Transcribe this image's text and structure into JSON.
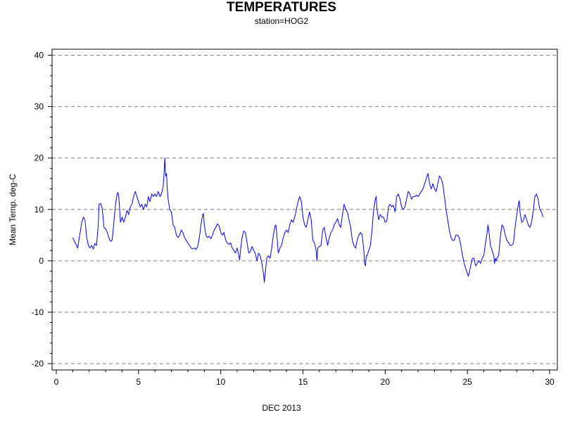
{
  "chart_data": {
    "type": "line",
    "title": "TEMPERATURES",
    "subtitle": "station=HOG2",
    "xlabel": "DEC 2013",
    "ylabel": "Mean Temp. deg-C",
    "xlim": [
      0,
      30
    ],
    "ylim": [
      -20,
      40
    ],
    "x_ticks": [
      0,
      5,
      10,
      15,
      20,
      25,
      30
    ],
    "y_ticks": [
      -20,
      -10,
      0,
      10,
      20,
      30,
      40
    ],
    "grid": "horizontal dashed",
    "line_color": "#0000ff",
    "series": [
      {
        "points": [
          [
            1.0,
            4.5
          ],
          [
            1.1,
            3.8
          ],
          [
            1.2,
            3.2
          ],
          [
            1.3,
            2.5
          ],
          [
            1.35,
            3.5
          ],
          [
            1.45,
            5.5
          ],
          [
            1.55,
            7.5
          ],
          [
            1.65,
            8.5
          ],
          [
            1.75,
            7.8
          ],
          [
            1.85,
            4.5
          ],
          [
            1.95,
            3.0
          ],
          [
            2.05,
            2.5
          ],
          [
            2.15,
            3.0
          ],
          [
            2.25,
            2.3
          ],
          [
            2.35,
            3.4
          ],
          [
            2.45,
            3.0
          ],
          [
            2.55,
            7.0
          ],
          [
            2.6,
            11.0
          ],
          [
            2.7,
            11.2
          ],
          [
            2.8,
            10.0
          ],
          [
            2.9,
            6.5
          ],
          [
            3.0,
            6.2
          ],
          [
            3.1,
            5.5
          ],
          [
            3.2,
            4.5
          ],
          [
            3.3,
            3.8
          ],
          [
            3.4,
            4.0
          ],
          [
            3.5,
            7.5
          ],
          [
            3.6,
            11.0
          ],
          [
            3.7,
            13.0
          ],
          [
            3.75,
            13.3
          ],
          [
            3.8,
            12.5
          ],
          [
            3.85,
            10.0
          ],
          [
            3.9,
            7.5
          ],
          [
            4.0,
            8.5
          ],
          [
            4.1,
            7.5
          ],
          [
            4.2,
            8.5
          ],
          [
            4.3,
            9.8
          ],
          [
            4.4,
            9.0
          ],
          [
            4.5,
            10.5
          ],
          [
            4.6,
            11.0
          ],
          [
            4.7,
            12.5
          ],
          [
            4.8,
            13.5
          ],
          [
            4.9,
            12.5
          ],
          [
            5.0,
            11.5
          ],
          [
            5.1,
            10.5
          ],
          [
            5.2,
            11.0
          ],
          [
            5.3,
            10.0
          ],
          [
            5.4,
            11.0
          ],
          [
            5.5,
            10.5
          ],
          [
            5.6,
            12.5
          ],
          [
            5.7,
            11.5
          ],
          [
            5.8,
            13.0
          ],
          [
            5.9,
            12.5
          ],
          [
            6.0,
            13.0
          ],
          [
            6.1,
            12.5
          ],
          [
            6.2,
            13.5
          ],
          [
            6.3,
            12.5
          ],
          [
            6.4,
            13.0
          ],
          [
            6.5,
            14.5
          ],
          [
            6.55,
            17.0
          ],
          [
            6.6,
            20.0
          ],
          [
            6.65,
            16.5
          ],
          [
            6.7,
            17.0
          ],
          [
            6.75,
            14.0
          ],
          [
            6.8,
            12.0
          ],
          [
            6.9,
            10.0
          ],
          [
            7.0,
            9.5
          ],
          [
            7.1,
            7.0
          ],
          [
            7.2,
            6.5
          ],
          [
            7.3,
            5.0
          ],
          [
            7.4,
            4.5
          ],
          [
            7.5,
            5.0
          ],
          [
            7.6,
            6.0
          ],
          [
            7.7,
            5.5
          ],
          [
            7.8,
            4.5
          ],
          [
            7.9,
            4.0
          ],
          [
            8.0,
            3.5
          ],
          [
            8.1,
            3.0
          ],
          [
            8.2,
            2.5
          ],
          [
            8.3,
            2.3
          ],
          [
            8.4,
            2.5
          ],
          [
            8.5,
            2.2
          ],
          [
            8.6,
            2.8
          ],
          [
            8.7,
            4.5
          ],
          [
            8.8,
            7.0
          ],
          [
            8.9,
            9.0
          ],
          [
            8.95,
            9.2
          ],
          [
            9.0,
            7.0
          ],
          [
            9.1,
            5.0
          ],
          [
            9.2,
            4.5
          ],
          [
            9.3,
            4.8
          ],
          [
            9.4,
            4.3
          ],
          [
            9.5,
            5.0
          ],
          [
            9.6,
            6.0
          ],
          [
            9.7,
            6.5
          ],
          [
            9.8,
            7.2
          ],
          [
            9.9,
            6.8
          ],
          [
            10.0,
            5.5
          ],
          [
            10.1,
            5.0
          ],
          [
            10.2,
            5.5
          ],
          [
            10.3,
            4.0
          ],
          [
            10.4,
            3.5
          ],
          [
            10.5,
            3.2
          ],
          [
            10.6,
            3.5
          ],
          [
            10.7,
            2.5
          ],
          [
            10.8,
            2.0
          ],
          [
            10.9,
            1.5
          ],
          [
            11.0,
            2.5
          ],
          [
            11.1,
            1.0
          ],
          [
            11.15,
            0.2
          ],
          [
            11.2,
            2.0
          ],
          [
            11.3,
            4.5
          ],
          [
            11.4,
            5.8
          ],
          [
            11.5,
            5.5
          ],
          [
            11.6,
            3.5
          ],
          [
            11.7,
            1.5
          ],
          [
            11.8,
            1.8
          ],
          [
            11.9,
            2.8
          ],
          [
            12.0,
            2.0
          ],
          [
            12.1,
            1.5
          ],
          [
            12.2,
            0.0
          ],
          [
            12.3,
            1.5
          ],
          [
            12.4,
            1.0
          ],
          [
            12.5,
            -0.5
          ],
          [
            12.6,
            -2.5
          ],
          [
            12.65,
            -4.2
          ],
          [
            12.7,
            -2.5
          ],
          [
            12.8,
            0.5
          ],
          [
            12.9,
            1.0
          ],
          [
            13.0,
            0.5
          ],
          [
            13.1,
            2.5
          ],
          [
            13.2,
            5.0
          ],
          [
            13.3,
            6.8
          ],
          [
            13.35,
            7.0
          ],
          [
            13.4,
            5.5
          ],
          [
            13.5,
            1.5
          ],
          [
            13.6,
            2.5
          ],
          [
            13.7,
            3.0
          ],
          [
            13.8,
            4.5
          ],
          [
            13.9,
            5.5
          ],
          [
            14.0,
            6.0
          ],
          [
            14.1,
            5.5
          ],
          [
            14.2,
            7.0
          ],
          [
            14.3,
            8.0
          ],
          [
            14.4,
            7.5
          ],
          [
            14.5,
            8.5
          ],
          [
            14.6,
            10.0
          ],
          [
            14.7,
            11.5
          ],
          [
            14.8,
            12.5
          ],
          [
            14.9,
            11.5
          ],
          [
            15.0,
            8.5
          ],
          [
            15.1,
            7.0
          ],
          [
            15.2,
            6.5
          ],
          [
            15.3,
            8.0
          ],
          [
            15.4,
            9.5
          ],
          [
            15.5,
            8.0
          ],
          [
            15.6,
            4.0
          ],
          [
            15.7,
            3.5
          ],
          [
            15.8,
            2.0
          ],
          [
            15.85,
            0.0
          ],
          [
            15.9,
            2.5
          ],
          [
            16.0,
            2.8
          ],
          [
            16.1,
            3.0
          ],
          [
            16.2,
            6.0
          ],
          [
            16.3,
            6.5
          ],
          [
            16.4,
            4.5
          ],
          [
            16.5,
            3.0
          ],
          [
            16.6,
            4.5
          ],
          [
            16.7,
            5.5
          ],
          [
            16.8,
            6.0
          ],
          [
            16.9,
            7.0
          ],
          [
            17.0,
            7.5
          ],
          [
            17.1,
            8.2
          ],
          [
            17.2,
            7.0
          ],
          [
            17.3,
            6.5
          ],
          [
            17.4,
            9.0
          ],
          [
            17.5,
            11.0
          ],
          [
            17.6,
            10.0
          ],
          [
            17.7,
            9.5
          ],
          [
            17.8,
            8.0
          ],
          [
            17.9,
            6.5
          ],
          [
            18.0,
            4.0
          ],
          [
            18.1,
            3.0
          ],
          [
            18.2,
            2.5
          ],
          [
            18.3,
            4.0
          ],
          [
            18.4,
            5.0
          ],
          [
            18.5,
            5.5
          ],
          [
            18.6,
            5.0
          ],
          [
            18.7,
            2.0
          ],
          [
            18.75,
            -0.5
          ],
          [
            18.8,
            -1.0
          ],
          [
            18.85,
            1.0
          ],
          [
            18.9,
            1.0
          ],
          [
            19.0,
            2.0
          ],
          [
            19.1,
            3.0
          ],
          [
            19.2,
            6.0
          ],
          [
            19.3,
            10.0
          ],
          [
            19.4,
            12.0
          ],
          [
            19.45,
            12.5
          ],
          [
            19.5,
            10.0
          ],
          [
            19.6,
            8.0
          ],
          [
            19.7,
            9.0
          ],
          [
            19.8,
            8.5
          ],
          [
            19.9,
            8.5
          ],
          [
            20.0,
            7.5
          ],
          [
            20.1,
            7.8
          ],
          [
            20.2,
            10.5
          ],
          [
            20.3,
            11.0
          ],
          [
            20.4,
            10.5
          ],
          [
            20.5,
            10.8
          ],
          [
            20.6,
            9.5
          ],
          [
            20.7,
            12.5
          ],
          [
            20.8,
            13.0
          ],
          [
            20.9,
            12.0
          ],
          [
            21.0,
            10.5
          ],
          [
            21.1,
            10.0
          ],
          [
            21.2,
            10.5
          ],
          [
            21.3,
            12.0
          ],
          [
            21.4,
            13.5
          ],
          [
            21.5,
            13.0
          ],
          [
            21.6,
            12.0
          ],
          [
            21.7,
            12.5
          ],
          [
            21.8,
            12.5
          ],
          [
            21.9,
            12.8
          ],
          [
            22.0,
            12.5
          ],
          [
            22.1,
            13.0
          ],
          [
            22.2,
            13.5
          ],
          [
            22.3,
            14.0
          ],
          [
            22.4,
            15.0
          ],
          [
            22.5,
            16.0
          ],
          [
            22.6,
            17.0
          ],
          [
            22.7,
            15.0
          ],
          [
            22.8,
            14.0
          ],
          [
            22.9,
            15.0
          ],
          [
            23.0,
            14.0
          ],
          [
            23.1,
            13.5
          ],
          [
            23.2,
            15.0
          ],
          [
            23.3,
            16.5
          ],
          [
            23.4,
            16.0
          ],
          [
            23.5,
            15.0
          ],
          [
            23.6,
            12.5
          ],
          [
            23.7,
            10.0
          ],
          [
            23.8,
            8.0
          ],
          [
            23.9,
            6.0
          ],
          [
            24.0,
            4.5
          ],
          [
            24.1,
            4.0
          ],
          [
            24.2,
            4.0
          ],
          [
            24.3,
            5.0
          ],
          [
            24.4,
            5.0
          ],
          [
            24.5,
            4.5
          ],
          [
            24.6,
            3.0
          ],
          [
            24.7,
            1.0
          ],
          [
            24.8,
            -0.5
          ],
          [
            24.9,
            -1.5
          ],
          [
            25.0,
            -2.5
          ],
          [
            25.05,
            -3.0
          ],
          [
            25.1,
            -2.5
          ],
          [
            25.2,
            -1.0
          ],
          [
            25.3,
            0.5
          ],
          [
            25.4,
            0.5
          ],
          [
            25.5,
            -1.0
          ],
          [
            25.6,
            -0.5
          ],
          [
            25.7,
            0.0
          ],
          [
            25.8,
            -0.5
          ],
          [
            25.9,
            0.5
          ],
          [
            26.0,
            1.0
          ],
          [
            26.1,
            3.5
          ],
          [
            26.2,
            5.5
          ],
          [
            26.25,
            7.0
          ],
          [
            26.3,
            6.0
          ],
          [
            26.4,
            3.0
          ],
          [
            26.5,
            2.0
          ],
          [
            26.6,
            1.0
          ],
          [
            26.65,
            -0.5
          ],
          [
            26.7,
            0.5
          ],
          [
            26.75,
            0.0
          ],
          [
            26.8,
            0.5
          ],
          [
            26.9,
            1.0
          ],
          [
            27.0,
            4.5
          ],
          [
            27.1,
            7.0
          ],
          [
            27.2,
            6.5
          ],
          [
            27.3,
            5.0
          ],
          [
            27.4,
            4.0
          ],
          [
            27.5,
            3.5
          ],
          [
            27.6,
            3.0
          ],
          [
            27.7,
            3.0
          ],
          [
            27.8,
            3.5
          ],
          [
            27.9,
            6.5
          ],
          [
            28.0,
            9.0
          ],
          [
            28.1,
            11.0
          ],
          [
            28.15,
            11.7
          ],
          [
            28.2,
            9.5
          ],
          [
            28.3,
            7.5
          ],
          [
            28.4,
            7.8
          ],
          [
            28.5,
            9.0
          ],
          [
            28.6,
            8.0
          ],
          [
            28.7,
            7.0
          ],
          [
            28.8,
            6.5
          ],
          [
            28.9,
            7.5
          ],
          [
            29.0,
            9.5
          ],
          [
            29.1,
            12.5
          ],
          [
            29.2,
            13.0
          ],
          [
            29.3,
            12.0
          ],
          [
            29.4,
            10.0
          ],
          [
            29.5,
            9.5
          ],
          [
            29.55,
            9.0
          ],
          [
            29.6,
            8.5
          ]
        ]
      }
    ]
  }
}
